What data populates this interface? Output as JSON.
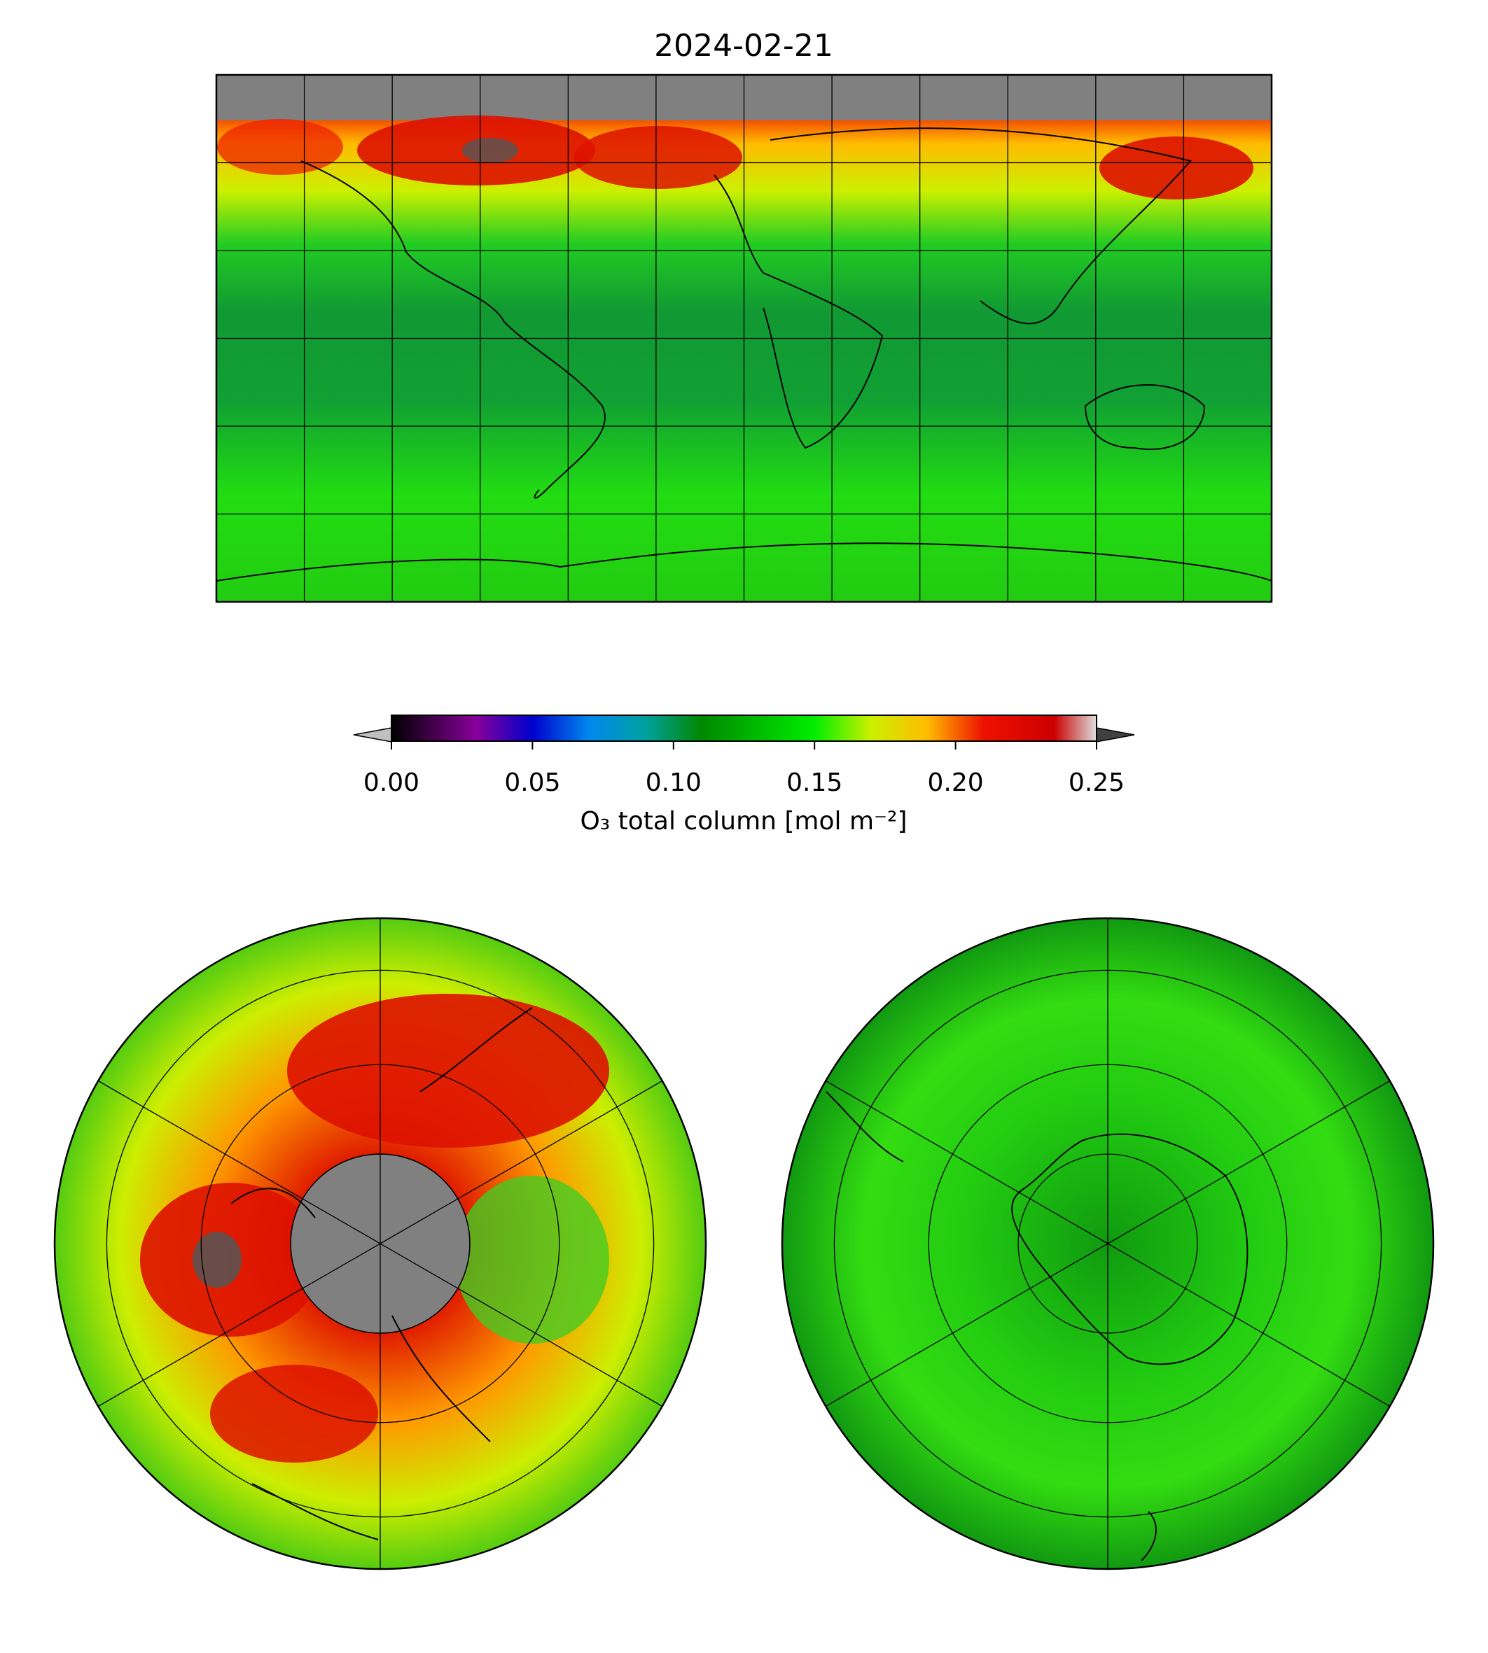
{
  "title": "2024-02-21",
  "colorbar": {
    "label": "O₃ total column [mol m⁻²]",
    "ticks": [
      "0.00",
      "0.05",
      "0.10",
      "0.15",
      "0.20",
      "0.25"
    ],
    "min": 0.0,
    "max": 0.25,
    "extend": "both",
    "under_color": "#c0c0c0",
    "over_color": "#404040",
    "stops": [
      {
        "value": 0.0,
        "color": "#000000"
      },
      {
        "value": 0.03,
        "color": "#880099"
      },
      {
        "value": 0.05,
        "color": "#0000cc"
      },
      {
        "value": 0.07,
        "color": "#0088ee"
      },
      {
        "value": 0.09,
        "color": "#00a0a0"
      },
      {
        "value": 0.11,
        "color": "#008800"
      },
      {
        "value": 0.15,
        "color": "#00ee00"
      },
      {
        "value": 0.17,
        "color": "#ccf000"
      },
      {
        "value": 0.19,
        "color": "#ffbb00"
      },
      {
        "value": 0.21,
        "color": "#ee1100"
      },
      {
        "value": 0.235,
        "color": "#cc0000"
      },
      {
        "value": 0.25,
        "color": "#dddddd"
      }
    ]
  },
  "panels": {
    "global": {
      "projection": "PlateCarree",
      "no_data_color": "#808080"
    },
    "north_polar": {
      "projection": "NorthPolarStereo",
      "no_data_color": "#808080"
    },
    "south_polar": {
      "projection": "SouthPolarStereo"
    }
  }
}
